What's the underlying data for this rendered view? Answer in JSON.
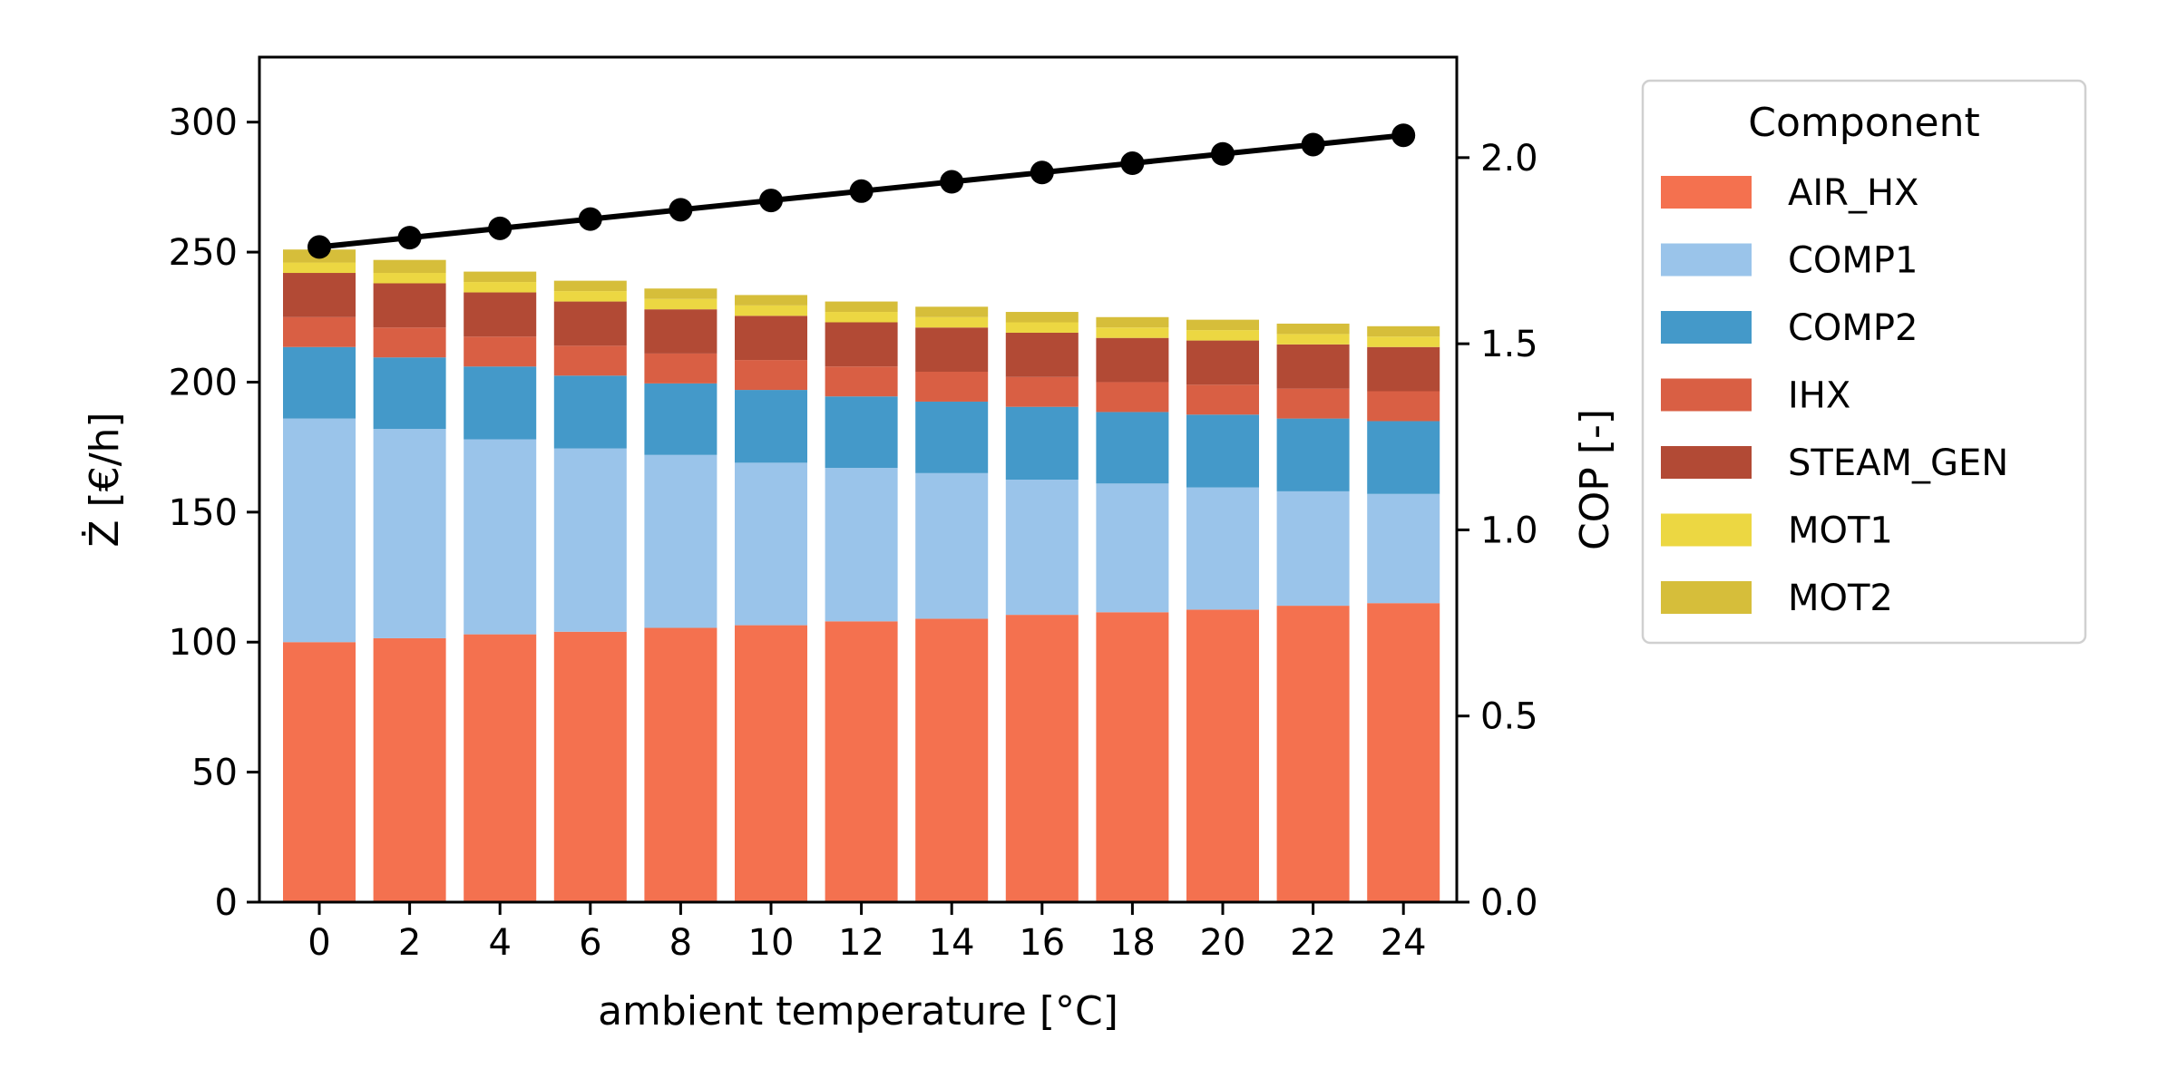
{
  "chart_data": {
    "type": "bar",
    "stacked": true,
    "categories": [
      "0",
      "2",
      "4",
      "6",
      "8",
      "10",
      "12",
      "14",
      "16",
      "18",
      "20",
      "22",
      "24"
    ],
    "xlabel": "ambient temperature [°C]",
    "ylabel": "Ż [€/h]",
    "y2label": "COP [-]",
    "ylim": [
      0,
      325
    ],
    "y2lim": [
      0,
      2.27
    ],
    "yticks": [
      0,
      50,
      100,
      150,
      200,
      250,
      300
    ],
    "y2ticks": [
      "0.0",
      "0.5",
      "1.0",
      "1.5",
      "2.0"
    ],
    "y2tick_values": [
      0,
      0.5,
      1.0,
      1.5,
      2.0
    ],
    "legend": {
      "title": "Component",
      "position": "outside-right"
    },
    "series": [
      {
        "name": "AIR_HX",
        "color": "#f4714f",
        "values": [
          100,
          101.5,
          103,
          104,
          105.5,
          106.5,
          108,
          109,
          110.5,
          111.5,
          112.5,
          114,
          115
        ]
      },
      {
        "name": "COMP1",
        "color": "#9ac4ea",
        "values": [
          86,
          80.5,
          75,
          70.5,
          66.5,
          62.5,
          59,
          56,
          52,
          49.5,
          47,
          44,
          42
        ]
      },
      {
        "name": "COMP2",
        "color": "#4499c9",
        "values": [
          27.5,
          27.5,
          28,
          28,
          27.5,
          28,
          27.5,
          27.5,
          28,
          27.5,
          28,
          28,
          28
        ]
      },
      {
        "name": "IHX",
        "color": "#d95f44",
        "values": [
          11.5,
          11.5,
          11.5,
          11.5,
          11.5,
          11.5,
          11.5,
          11.5,
          11.5,
          11.5,
          11.5,
          11.5,
          11.5
        ]
      },
      {
        "name": "STEAM_GEN",
        "color": "#b24a35",
        "values": [
          17,
          17,
          17,
          17,
          17,
          17,
          17,
          17,
          17,
          17,
          17,
          17,
          17
        ]
      },
      {
        "name": "MOT1",
        "color": "#ecd742",
        "values": [
          4,
          4,
          4,
          4,
          4,
          4,
          4,
          4,
          4,
          4,
          4,
          4,
          4
        ]
      },
      {
        "name": "MOT2",
        "color": "#d6be3a",
        "values": [
          5,
          5,
          4,
          4,
          4,
          4,
          4,
          4,
          4,
          4,
          4,
          4,
          4
        ]
      }
    ],
    "line_series": {
      "name": "COP",
      "axis": "right",
      "color": "#000000",
      "values": [
        1.76,
        1.785,
        1.81,
        1.835,
        1.86,
        1.885,
        1.91,
        1.935,
        1.96,
        1.985,
        2.01,
        2.035,
        2.06
      ]
    }
  }
}
